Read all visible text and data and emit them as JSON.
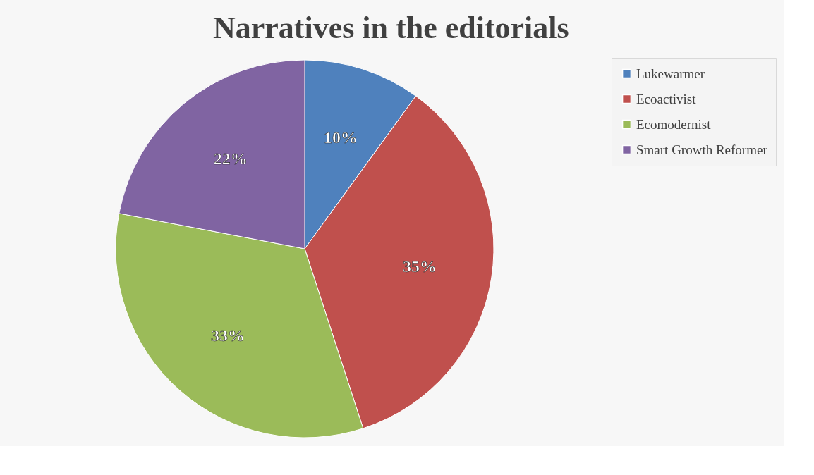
{
  "chart_data": {
    "type": "pie",
    "title": "Narratives in the editorials",
    "categories": [
      "Lukewarmer",
      "Ecoactivist",
      "Ecomodernist",
      "Smart Growth Reformer"
    ],
    "values": [
      10,
      35,
      33,
      22
    ],
    "value_labels": [
      "10%",
      "35%",
      "33%",
      "22%"
    ],
    "colors": [
      "#4f81bd",
      "#c0504d",
      "#9bbb59",
      "#8064a2"
    ],
    "legend": "right"
  }
}
